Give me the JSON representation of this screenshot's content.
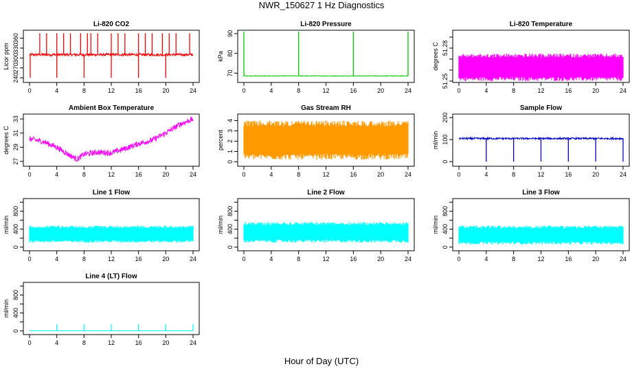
{
  "page": {
    "title": "NWR_150627  1 Hz Diagnostics",
    "x_caption": "Hour of Day (UTC)"
  },
  "chart_data": [
    {
      "type": "line",
      "title": "Li-820 CO2",
      "ylabel": "Licor ppm",
      "color": "#ff0000",
      "xlim": [
        0,
        24
      ],
      "x_ticks": [
        "0",
        "4",
        "8",
        "12",
        "16",
        "20",
        "24"
      ],
      "ylim": [
        230,
        380
      ],
      "y_ticks": [
        "240",
        "270",
        "300",
        "330",
        "360"
      ],
      "baseline": 310,
      "noise": 4,
      "spikes_up_at": [
        1.5,
        2.5,
        4,
        5,
        6,
        7.5,
        8.5,
        9,
        10,
        12,
        13,
        14,
        16,
        17,
        18,
        19.5,
        20.5,
        21.5,
        23.5
      ],
      "spike_up_to": 375,
      "spikes_down_at": [
        0.1,
        4,
        8,
        12,
        16,
        20
      ],
      "spike_down_to": 240
    },
    {
      "type": "line",
      "title": "Li-820 Pressure",
      "ylabel": "kPa",
      "color": "#00cc00",
      "xlim": [
        0,
        24
      ],
      "x_ticks": [
        "0",
        "4",
        "8",
        "12",
        "16",
        "20",
        "24"
      ],
      "ylim": [
        66,
        91
      ],
      "y_ticks": [
        "70",
        "80",
        "90"
      ],
      "baseline": 68.6,
      "noise": 0.15,
      "spikes_up_at": [
        0,
        8,
        16,
        24
      ],
      "spike_up_to": 91
    },
    {
      "type": "line",
      "title": "Li-820 Temperature",
      "ylabel": "degrees C",
      "color": "#ff00ff",
      "xlim": [
        0,
        24
      ],
      "x_ticks": [
        "0",
        "4",
        "8",
        "12",
        "16",
        "20",
        "24"
      ],
      "ylim": [
        51.25,
        51.295
      ],
      "y_ticks": [
        "51.25",
        "51.26",
        "51.27",
        "51.28",
        "51.29"
      ],
      "y_tick_labels_shown": [
        "51.25",
        "51.28"
      ],
      "band": [
        51.25,
        51.275
      ]
    },
    {
      "type": "line",
      "title": "Ambient Box Temperature",
      "ylabel": "degrees C",
      "color": "#ff00ff",
      "xlim": [
        0,
        24
      ],
      "x_ticks": [
        "0",
        "4",
        "8",
        "12",
        "16",
        "20",
        "24"
      ],
      "ylim": [
        26.5,
        33.5
      ],
      "y_ticks": [
        "27",
        "29",
        "31",
        "33"
      ],
      "x": [
        0,
        2,
        4,
        6,
        7,
        8,
        10,
        12,
        14,
        16,
        18,
        20,
        22,
        24
      ],
      "y": [
        30.2,
        29.8,
        29.0,
        27.8,
        27.3,
        28.0,
        28.3,
        28.2,
        28.8,
        29.5,
        30.0,
        31.0,
        32.2,
        33.0
      ],
      "noise": 0.4
    },
    {
      "type": "line",
      "title": "Gas Stream RH",
      "ylabel": "percent",
      "color": "#ff9900",
      "xlim": [
        0,
        24
      ],
      "x_ticks": [
        "0",
        "4",
        "8",
        "12",
        "16",
        "20",
        "24"
      ],
      "ylim": [
        -0.3,
        4.5
      ],
      "y_ticks": [
        "0",
        "1",
        "2",
        "3",
        "4"
      ],
      "band": [
        0.2,
        4.0
      ]
    },
    {
      "type": "line",
      "title": "Sample Flow",
      "ylabel": "ml/min",
      "color": "#0000cc",
      "xlim": [
        0,
        24
      ],
      "x_ticks": [
        "0",
        "4",
        "8",
        "12",
        "16",
        "20",
        "24"
      ],
      "ylim": [
        -15,
        210
      ],
      "y_ticks": [
        "0",
        "100",
        "200"
      ],
      "baseline": 105,
      "noise": 4,
      "spikes_down_at": [
        4,
        8,
        12,
        16,
        20,
        24
      ],
      "spike_down_to": 0
    },
    {
      "type": "line",
      "title": "Line 1 Flow",
      "ylabel": "ml/min",
      "color": "#00ffff",
      "xlim": [
        0,
        24
      ],
      "x_ticks": [
        "0",
        "4",
        "8",
        "12",
        "16",
        "20",
        "24"
      ],
      "ylim": [
        -50,
        1050
      ],
      "y_ticks": [
        "0",
        "200",
        "400",
        "600",
        "800",
        "1000"
      ],
      "y_tick_labels_shown": [
        "0",
        "400",
        "800"
      ],
      "band": [
        100,
        480
      ]
    },
    {
      "type": "line",
      "title": "Line 2 Flow",
      "ylabel": "ml/min",
      "color": "#00ffff",
      "xlim": [
        0,
        24
      ],
      "x_ticks": [
        "0",
        "4",
        "8",
        "12",
        "16",
        "20",
        "24"
      ],
      "ylim": [
        -50,
        1050
      ],
      "y_ticks": [
        "0",
        "200",
        "400",
        "600",
        "800",
        "1000"
      ],
      "y_tick_labels_shown": [
        "0",
        "400",
        "800"
      ],
      "band": [
        100,
        560
      ]
    },
    {
      "type": "line",
      "title": "Line 3 Flow",
      "ylabel": "ml/min",
      "color": "#00ffff",
      "xlim": [
        0,
        24
      ],
      "x_ticks": [
        "0",
        "4",
        "8",
        "12",
        "16",
        "20",
        "24"
      ],
      "ylim": [
        -50,
        1050
      ],
      "y_ticks": [
        "0",
        "200",
        "400",
        "600",
        "800",
        "1000"
      ],
      "y_tick_labels_shown": [
        "0",
        "400",
        "800"
      ],
      "band": [
        60,
        480
      ]
    },
    {
      "type": "line",
      "title": "Line 4 (LT) Flow",
      "ylabel": "ml/min",
      "color": "#00ffff",
      "xlim": [
        0,
        24
      ],
      "x_ticks": [
        "0",
        "4",
        "8",
        "12",
        "16",
        "20",
        "24"
      ],
      "ylim": [
        -50,
        1050
      ],
      "y_ticks": [
        "0",
        "200",
        "400",
        "600",
        "800",
        "1000"
      ],
      "y_tick_labels_shown": [
        "0",
        "400",
        "800"
      ],
      "baseline": 5,
      "noise": 2,
      "spikes_up_at": [
        4,
        8,
        12,
        16,
        20,
        24
      ],
      "spike_up_to": 150
    }
  ]
}
